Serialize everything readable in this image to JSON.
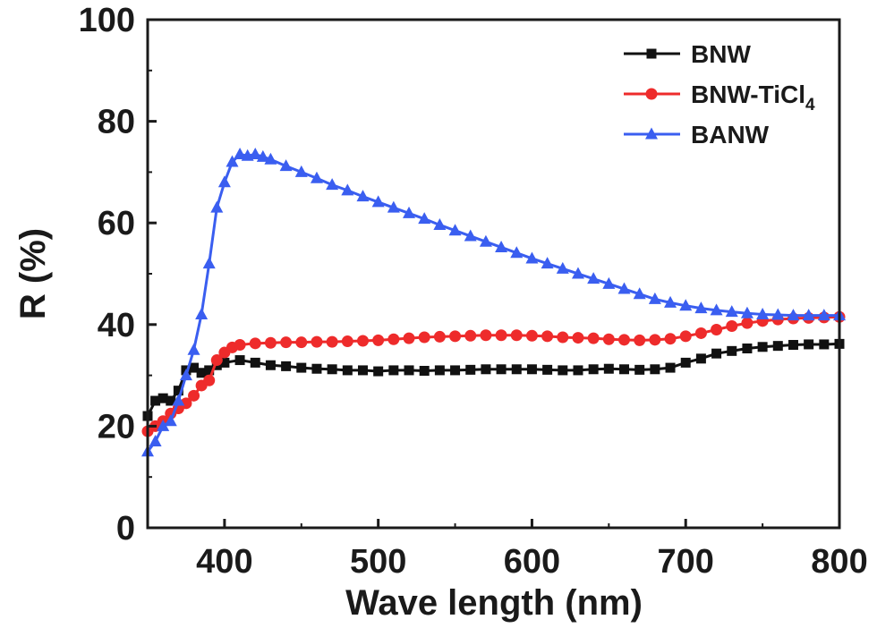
{
  "chart_data": {
    "type": "line",
    "title": "",
    "xlabel": "Wave length (nm)",
    "ylabel": "R (%)",
    "xlim": [
      350,
      800
    ],
    "ylim": [
      0,
      100
    ],
    "x_ticks": [
      400,
      500,
      600,
      700,
      800
    ],
    "y_ticks": [
      0,
      20,
      40,
      60,
      80,
      100
    ],
    "grid": false,
    "legend_position": "top-right",
    "series": [
      {
        "name": "BNW",
        "subscript": "",
        "color": "#111111",
        "marker": "square",
        "x": [
          350,
          355,
          360,
          365,
          370,
          375,
          380,
          385,
          390,
          395,
          400,
          410,
          420,
          430,
          440,
          450,
          460,
          470,
          480,
          490,
          500,
          510,
          520,
          530,
          540,
          550,
          560,
          570,
          580,
          590,
          600,
          610,
          620,
          630,
          640,
          650,
          660,
          670,
          680,
          690,
          700,
          710,
          720,
          730,
          740,
          750,
          760,
          770,
          780,
          790,
          800
        ],
        "y": [
          22,
          25,
          25.5,
          25,
          27,
          31,
          31.5,
          30.5,
          31,
          32,
          32.5,
          33,
          32.5,
          32,
          31.8,
          31.5,
          31.3,
          31.2,
          31,
          31,
          30.8,
          31,
          31,
          30.9,
          31,
          31,
          31.1,
          31.2,
          31.2,
          31.2,
          31.2,
          31.1,
          31,
          31,
          31.2,
          31.3,
          31.2,
          31.1,
          31.2,
          31.5,
          32.5,
          33.3,
          34.3,
          34.8,
          35.3,
          35.6,
          35.8,
          36,
          36.1,
          36.1,
          36.2
        ]
      },
      {
        "name": "BNW-TiCl",
        "subscript": "4",
        "color": "#ee2b2b",
        "marker": "circle",
        "x": [
          350,
          355,
          360,
          365,
          370,
          375,
          380,
          385,
          390,
          395,
          400,
          405,
          410,
          420,
          430,
          440,
          450,
          460,
          470,
          480,
          490,
          500,
          510,
          520,
          530,
          540,
          550,
          560,
          570,
          580,
          590,
          600,
          610,
          620,
          630,
          640,
          650,
          660,
          670,
          680,
          690,
          700,
          710,
          720,
          730,
          740,
          750,
          760,
          770,
          780,
          790,
          800
        ],
        "y": [
          19,
          20,
          21,
          22.5,
          23.5,
          24.5,
          26,
          28,
          29,
          33,
          34.5,
          35.5,
          36,
          36.3,
          36.4,
          36.5,
          36.5,
          36.6,
          36.6,
          36.7,
          36.8,
          36.9,
          37.1,
          37.3,
          37.5,
          37.6,
          37.7,
          37.8,
          37.9,
          37.9,
          37.9,
          37.8,
          37.7,
          37.5,
          37.4,
          37.3,
          37.1,
          37,
          36.9,
          37,
          37.2,
          37.7,
          38.3,
          39,
          39.7,
          40.3,
          40.7,
          41,
          41.2,
          41.3,
          41.4,
          41.5
        ]
      },
      {
        "name": "BANW",
        "subscript": "",
        "color": "#3a5ef0",
        "marker": "triangle",
        "x": [
          350,
          355,
          360,
          365,
          370,
          375,
          380,
          385,
          390,
          395,
          400,
          405,
          410,
          415,
          420,
          425,
          430,
          440,
          450,
          460,
          470,
          480,
          490,
          500,
          510,
          520,
          530,
          540,
          550,
          560,
          570,
          580,
          590,
          600,
          610,
          620,
          630,
          640,
          650,
          660,
          670,
          680,
          690,
          700,
          710,
          720,
          730,
          740,
          750,
          760,
          770,
          780,
          790,
          800
        ],
        "y": [
          15,
          17,
          20,
          21,
          25,
          30,
          35,
          42,
          52,
          63,
          68,
          72,
          73.5,
          73.2,
          73.5,
          73,
          72.5,
          71.2,
          70,
          68.8,
          67.5,
          66.4,
          65.2,
          64.1,
          63,
          61.9,
          60.8,
          59.6,
          58.5,
          57.4,
          56.3,
          55.2,
          54.1,
          53,
          52,
          51,
          50,
          49,
          48,
          47,
          46,
          45,
          44.3,
          43.7,
          43.2,
          42.8,
          42.5,
          42.2,
          42,
          41.9,
          41.8,
          41.8,
          41.8,
          41.8
        ]
      }
    ]
  }
}
